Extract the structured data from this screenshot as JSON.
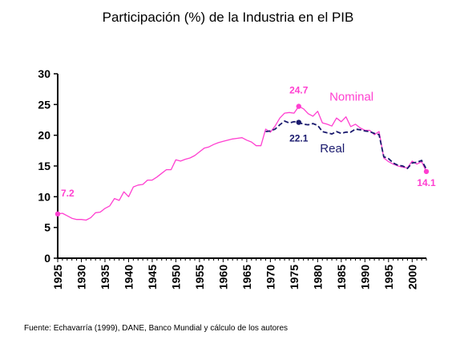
{
  "chart_data": {
    "type": "line",
    "title": "Participación (%) de la Industria en el PIB",
    "xlabel": "",
    "ylabel": "",
    "xlim": [
      1925,
      2003
    ],
    "ylim": [
      0,
      30
    ],
    "yticks": [
      "0",
      "5",
      "10",
      "15",
      "20",
      "25",
      "30"
    ],
    "xticks": [
      "1925",
      "1930",
      "1935",
      "1940",
      "1945",
      "1950",
      "1955",
      "1960",
      "1965",
      "1970",
      "1975",
      "1980",
      "1985",
      "1990",
      "1995",
      "2000"
    ],
    "grid": false,
    "series": [
      {
        "name": "Nominal",
        "color": "#ff3fd0",
        "style": "solid",
        "x": [
          1925,
          1926,
          1927,
          1928,
          1929,
          1930,
          1931,
          1932,
          1933,
          1934,
          1935,
          1936,
          1937,
          1938,
          1939,
          1940,
          1941,
          1942,
          1943,
          1944,
          1945,
          1946,
          1947,
          1948,
          1949,
          1950,
          1951,
          1952,
          1953,
          1954,
          1955,
          1956,
          1957,
          1958,
          1959,
          1960,
          1961,
          1962,
          1963,
          1964,
          1965,
          1966,
          1967,
          1968,
          1969,
          1970,
          1971,
          1972,
          1973,
          1974,
          1975,
          1976,
          1977,
          1978,
          1979,
          1980,
          1981,
          1982,
          1983,
          1984,
          1985,
          1986,
          1987,
          1988,
          1989,
          1990,
          1991,
          1992,
          1993,
          1994,
          1995,
          1996,
          1997,
          1998,
          1999,
          2000,
          2001,
          2002,
          2003
        ],
        "values": [
          7.2,
          7.3,
          6.9,
          6.5,
          6.3,
          6.3,
          6.2,
          6.6,
          7.4,
          7.5,
          8.1,
          8.5,
          9.7,
          9.4,
          10.8,
          10.0,
          11.6,
          11.9,
          12.0,
          12.7,
          12.7,
          13.2,
          13.8,
          14.4,
          14.4,
          16.0,
          15.8,
          16.1,
          16.3,
          16.7,
          17.3,
          17.9,
          18.1,
          18.5,
          18.8,
          19.0,
          19.2,
          19.4,
          19.5,
          19.6,
          19.2,
          18.9,
          18.3,
          18.3,
          21.0,
          20.5,
          21.5,
          22.8,
          23.6,
          23.7,
          23.6,
          24.7,
          24.3,
          23.5,
          23.1,
          23.9,
          22.0,
          21.8,
          21.5,
          22.8,
          22.2,
          23.0,
          21.4,
          21.8,
          21.2,
          20.8,
          20.8,
          20.1,
          20.6,
          16.3,
          15.7,
          15.3,
          15.0,
          14.8,
          14.7,
          15.8,
          15.3,
          15.7,
          14.1
        ]
      },
      {
        "name": "Real",
        "color": "#1a1a6e",
        "style": "dashed",
        "x": [
          1969,
          1970,
          1971,
          1972,
          1973,
          1974,
          1975,
          1976,
          1977,
          1978,
          1979,
          1980,
          1981,
          1982,
          1983,
          1984,
          1985,
          1986,
          1987,
          1988,
          1989,
          1990,
          1991,
          1992,
          1993,
          1994,
          1995,
          1996,
          1997,
          1998,
          1999,
          2000,
          2001,
          2002,
          2003
        ],
        "values": [
          20.6,
          20.7,
          21.0,
          21.7,
          22.3,
          22.0,
          22.2,
          22.1,
          21.8,
          21.7,
          21.9,
          21.6,
          20.6,
          20.4,
          20.2,
          20.6,
          20.3,
          20.5,
          20.5,
          21.0,
          20.9,
          20.7,
          20.6,
          20.3,
          20.1,
          16.5,
          16.2,
          15.5,
          15.1,
          15.0,
          14.6,
          15.5,
          15.6,
          15.9,
          14.5
        ]
      }
    ],
    "annotations": [
      {
        "text": "7.2",
        "x": 1925,
        "y": 7.2,
        "color": "#ff3fd0",
        "series": "Nominal"
      },
      {
        "text": "24.7",
        "x": 1976,
        "y": 24.7,
        "color": "#ff3fd0",
        "series": "Nominal"
      },
      {
        "text": "22.1",
        "x": 1976,
        "y": 22.1,
        "color": "#1a1a6e",
        "series": "Real"
      },
      {
        "text": "14.1",
        "x": 2003,
        "y": 14.1,
        "color": "#ff3fd0",
        "series": "Nominal"
      }
    ],
    "source": "Fuente: Echavarría (1999), DANE, Banco Mundial  y cálculo de los autores"
  }
}
